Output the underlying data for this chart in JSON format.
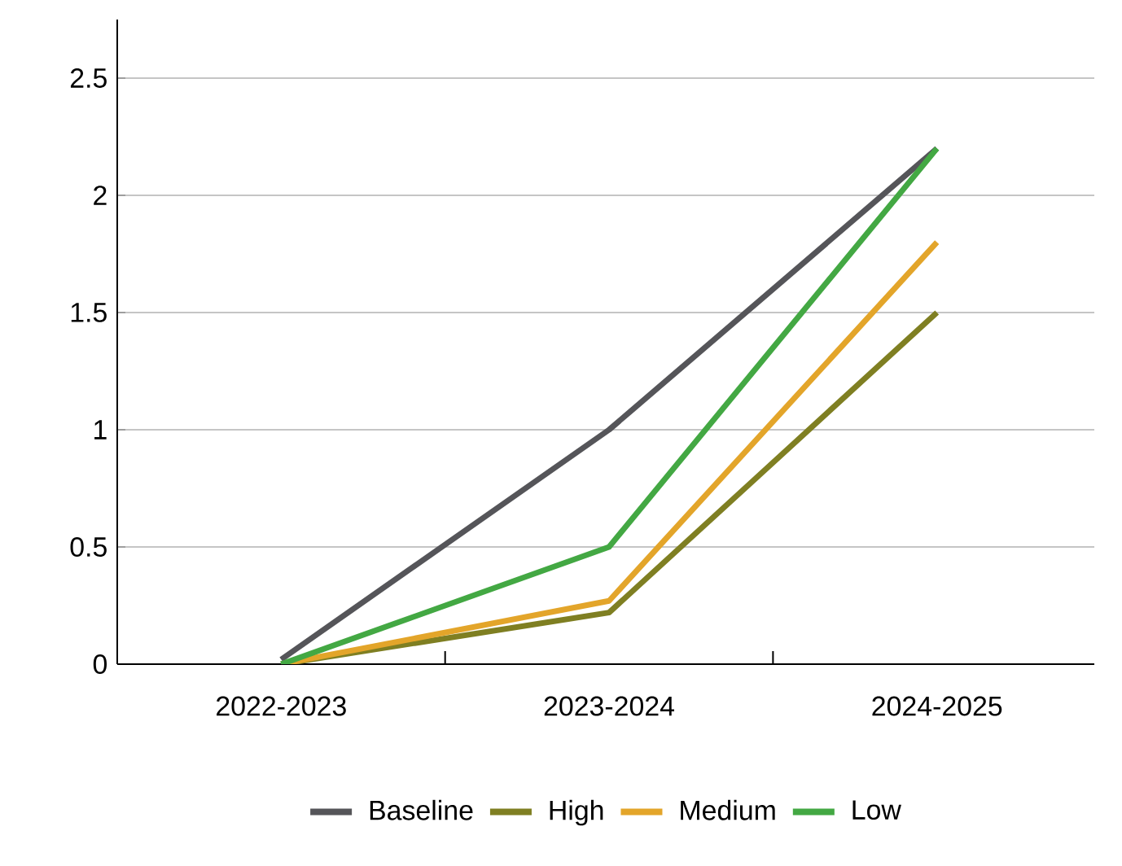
{
  "chart_data": {
    "type": "line",
    "categories": [
      "2022-2023",
      "2023-2024",
      "2024-2025"
    ],
    "series": [
      {
        "name": "Baseline",
        "color": "#555559",
        "values": [
          0.02,
          1.0,
          2.2
        ]
      },
      {
        "name": "High",
        "color": "#7f7f22",
        "values": [
          0,
          0.22,
          1.5
        ]
      },
      {
        "name": "Medium",
        "color": "#e3a52a",
        "values": [
          0,
          0.27,
          1.8
        ]
      },
      {
        "name": "Low",
        "color": "#43a843",
        "values": [
          0,
          0.5,
          2.2
        ]
      }
    ],
    "ylim": [
      0,
      2.75
    ],
    "yticks": [
      0,
      0.5,
      1,
      1.5,
      2,
      2.5
    ],
    "grid": "y",
    "legend": "bottom",
    "marker": "none",
    "line_style": "solid"
  }
}
